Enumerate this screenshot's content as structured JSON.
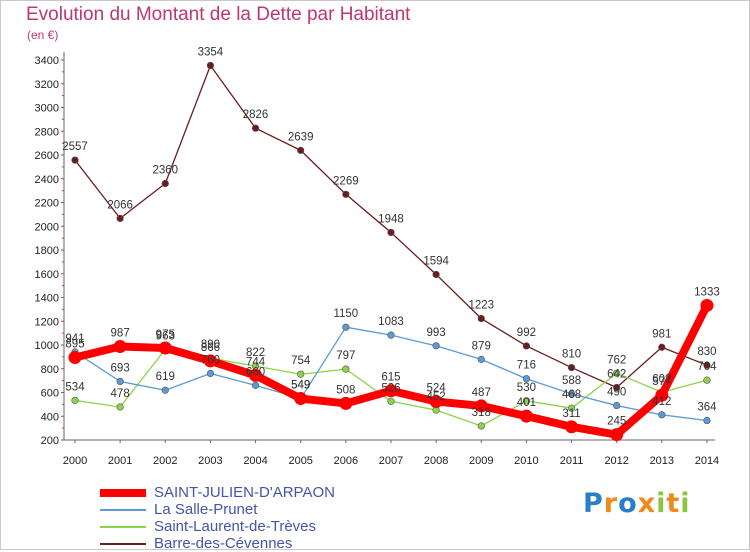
{
  "chart_data": {
    "type": "line",
    "title": "Evolution du Montant de la Dette par Habitant",
    "subtitle": "(en €)",
    "x": [
      "2000",
      "2001",
      "2002",
      "2003",
      "2004",
      "2005",
      "2006",
      "2007",
      "2008",
      "2009",
      "2010",
      "2011",
      "2012",
      "2013",
      "2014"
    ],
    "yticks": [
      200,
      400,
      600,
      800,
      1000,
      1200,
      1400,
      1600,
      1800,
      2000,
      2200,
      2400,
      2600,
      2800,
      3000,
      3200,
      3400
    ],
    "ylim": [
      200,
      3400
    ],
    "grid": false,
    "legend_position": "bottom-left",
    "series": [
      {
        "name": "SAINT-JULIEN-D'ARPAON",
        "color": "#ff0000",
        "values": [
          895,
          987,
          975,
          866,
          744,
          549,
          508,
          615,
          524,
          487,
          401,
          311,
          245,
          577,
          1333
        ]
      },
      {
        "name": "La Salle-Prunet",
        "color": "#5b9bd5",
        "values": [
          941,
          693,
          619,
          760,
          660,
          549,
          1150,
          1083,
          993,
          879,
          716,
          588,
          490,
          412,
          364
        ]
      },
      {
        "name": "Saint-Laurent-de-Trèves",
        "color": "#8bd44a",
        "values": [
          534,
          478,
          963,
          890,
          822,
          754,
          797,
          526,
          452,
          318,
          530,
          468,
          762,
          602,
          704
        ]
      },
      {
        "name": "Barre-des-Cévennes",
        "color": "#6b1d1d",
        "values": [
          2557,
          2066,
          2360,
          3354,
          2826,
          2639,
          2269,
          1948,
          1594,
          1223,
          992,
          810,
          642,
          981,
          830
        ]
      }
    ]
  },
  "brand": {
    "text": "Proxiti",
    "color_blue": "#2a7ec8",
    "color_orange": "#f08a1e",
    "color_green": "#8cc63f"
  }
}
